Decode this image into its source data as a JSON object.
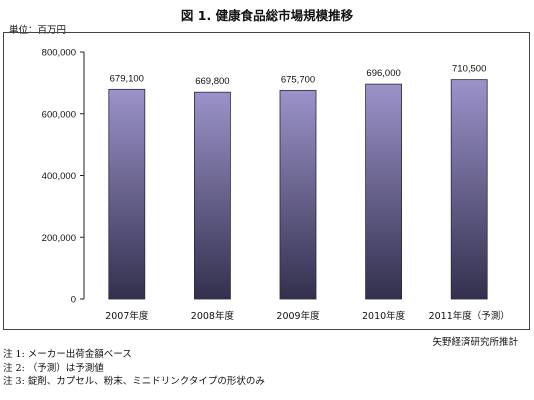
{
  "header": {
    "title": "図 1. 健康食品総市場規模推移",
    "unit": "単位：百万円"
  },
  "chart_data": {
    "type": "bar",
    "categories": [
      "2007年度",
      "2008年度",
      "2009年度",
      "2010年度",
      "2011年度（予測）"
    ],
    "values": [
      679100,
      669800,
      675700,
      696000,
      710500
    ],
    "value_labels": [
      "679,100",
      "669,800",
      "675,700",
      "696,000",
      "710,500"
    ],
    "yticks": [
      "0",
      "200,000",
      "400,000",
      "600,000",
      "800,000"
    ],
    "ylim": [
      0,
      800000
    ],
    "colors": {
      "bar_top": "#9b93c9",
      "bar_bottom": "#33304e"
    }
  },
  "footer": {
    "source": "矢野経済研究所推計",
    "notes": [
      "注 1:  メーカー出荷金額ベース",
      "注 2:  （予測）は予測値",
      "注 3:  錠剤、カプセル、粉末、ミニドリンクタイプの形状のみ"
    ]
  }
}
